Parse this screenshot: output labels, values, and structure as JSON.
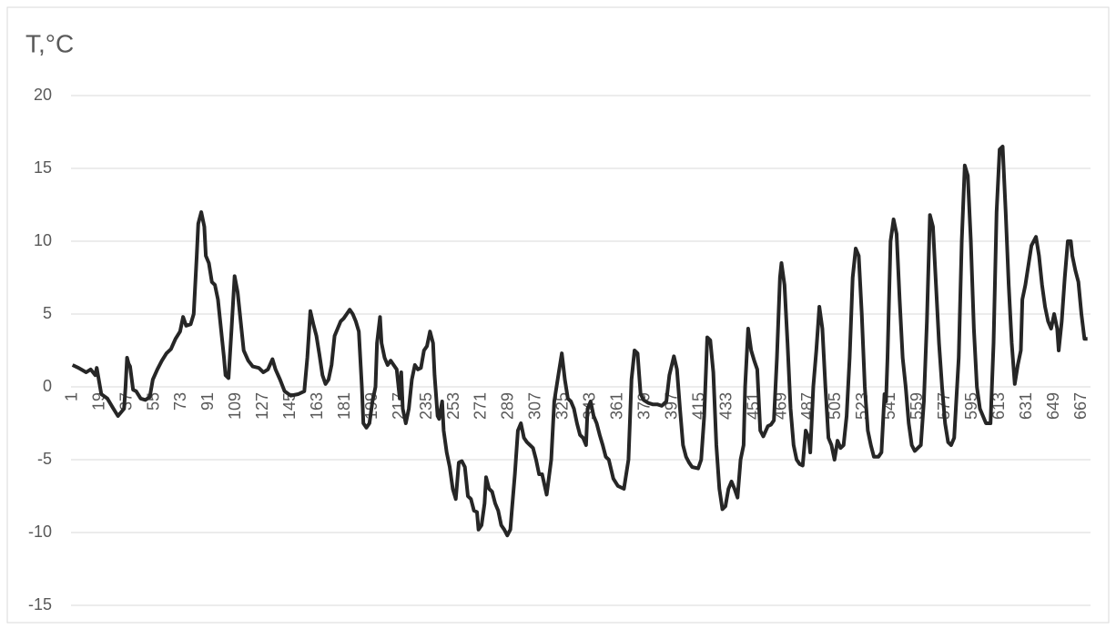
{
  "chart_data": {
    "type": "line",
    "title": "T,°C",
    "x": [
      1,
      5,
      10,
      13,
      16,
      17,
      20,
      24,
      28,
      31,
      35,
      36,
      37,
      38,
      39,
      41,
      43,
      46,
      49,
      52,
      54,
      57,
      60,
      63,
      66,
      69,
      72,
      74,
      76,
      79,
      81,
      83,
      84,
      86,
      88,
      89,
      91,
      93,
      95,
      97,
      99,
      101,
      102,
      104,
      106,
      108,
      110,
      112,
      114,
      117,
      120,
      124,
      127,
      130,
      133,
      135,
      138,
      141,
      145,
      150,
      154,
      156,
      158,
      160,
      162,
      164,
      166,
      168,
      170,
      172,
      174,
      176,
      178,
      180,
      182,
      184,
      186,
      188,
      190,
      192,
      193,
      195,
      197,
      199,
      201,
      202,
      204,
      205,
      207,
      209,
      211,
      213,
      215,
      217,
      218,
      219,
      221,
      223,
      225,
      227,
      229,
      231,
      233,
      235,
      237,
      239,
      240,
      242,
      243,
      245,
      246,
      248,
      250,
      252,
      254,
      256,
      258,
      260,
      262,
      264,
      266,
      268,
      269,
      271,
      273,
      274,
      276,
      278,
      280,
      282,
      284,
      286,
      288,
      290,
      291,
      293,
      295,
      297,
      299,
      301,
      303,
      305,
      307,
      309,
      311,
      314,
      317,
      319,
      322,
      324,
      326,
      328,
      330,
      332,
      334,
      336,
      338,
      340,
      341,
      343,
      345,
      347,
      349,
      351,
      353,
      355,
      358,
      361,
      365,
      368,
      370,
      372,
      374,
      376,
      378,
      381,
      384,
      387,
      390,
      393,
      395,
      398,
      400,
      402,
      404,
      406,
      408,
      410,
      414,
      416,
      418,
      420,
      422,
      424,
      426,
      428,
      430,
      432,
      434,
      436,
      438,
      440,
      442,
      444,
      445,
      447,
      449,
      451,
      453,
      455,
      457,
      460,
      462,
      464,
      466,
      468,
      469,
      471,
      473,
      475,
      477,
      479,
      481,
      483,
      485,
      487,
      488,
      490,
      492,
      494,
      496,
      498,
      500,
      502,
      504,
      506,
      508,
      510,
      512,
      514,
      516,
      518,
      520,
      522,
      524,
      526,
      528,
      530,
      533,
      535,
      537,
      538,
      539,
      541,
      543,
      545,
      547,
      549,
      551,
      553,
      555,
      557,
      559,
      561,
      563,
      565,
      567,
      569,
      571,
      573,
      575,
      577,
      579,
      581,
      583,
      586,
      588,
      590,
      592,
      594,
      596,
      598,
      600,
      602,
      604,
      607,
      609,
      611,
      613,
      615,
      617,
      619,
      621,
      623,
      625,
      627,
      628,
      630,
      634,
      637,
      639,
      641,
      643,
      645,
      647,
      649,
      651,
      652,
      654,
      656,
      658,
      660,
      661,
      663,
      665,
      667,
      669,
      671
    ],
    "series": [
      {
        "color": "#262626",
        "values": [
          1.5,
          1.3,
          1.0,
          1.2,
          0.8,
          1.3,
          -0.5,
          -0.8,
          -1.5,
          -2.0,
          -1.5,
          0,
          2.0,
          1.6,
          1.4,
          -0.2,
          -0.3,
          -0.8,
          -0.9,
          -0.7,
          0.5,
          1.2,
          1.8,
          2.3,
          2.6,
          3.3,
          3.8,
          4.8,
          4.2,
          4.3,
          5,
          9,
          11.2,
          12,
          11,
          9,
          8.5,
          7.2,
          7,
          6,
          4,
          2,
          0.8,
          0.6,
          4,
          7.6,
          6.5,
          4.5,
          2.5,
          1.8,
          1.4,
          1.3,
          1,
          1.2,
          1.9,
          1.2,
          0.5,
          -0.3,
          -0.6,
          -0.5,
          -0.3,
          2,
          5.2,
          4.3,
          3.5,
          2.2,
          0.8,
          0.2,
          0.5,
          1.5,
          3.5,
          4,
          4.5,
          4.7,
          5,
          5.3,
          5,
          4.5,
          3.8,
          0,
          -2.5,
          -2.8,
          -2.5,
          -1,
          0,
          3,
          4.8,
          3,
          2,
          1.5,
          1.8,
          1.5,
          1.2,
          -0.8,
          1,
          -1.5,
          -2.5,
          -1.5,
          0.5,
          1.5,
          1.2,
          1.3,
          2.5,
          2.8,
          3.8,
          3,
          0.8,
          -2,
          -2.2,
          -1,
          -3,
          -4.5,
          -5.5,
          -7,
          -7.7,
          -5.2,
          -5.1,
          -5.5,
          -7.5,
          -7.7,
          -8.5,
          -8.6,
          -9.8,
          -9.5,
          -8,
          -6.2,
          -7,
          -7.2,
          -8,
          -8.5,
          -9.5,
          -9.8,
          -10.2,
          -9.8,
          -8.5,
          -6,
          -3,
          -2.5,
          -3.5,
          -3.8,
          -4,
          -4.2,
          -5,
          -6,
          -6,
          -7.4,
          -5,
          -1,
          1,
          2.3,
          0.5,
          -0.8,
          -1,
          -1.5,
          -2.5,
          -3.3,
          -3.5,
          -4,
          -1.5,
          -1,
          -2,
          -2.5,
          -3.3,
          -4,
          -4.8,
          -5,
          -6.3,
          -6.8,
          -7,
          -5,
          0.5,
          2.5,
          2.3,
          -0.5,
          -0.9,
          -1.1,
          -1.2,
          -1.2,
          -1.3,
          -1,
          0.8,
          2.1,
          1.2,
          -1.5,
          -4,
          -4.8,
          -5.2,
          -5.5,
          -5.6,
          -5,
          -2,
          3.4,
          3.2,
          1,
          -4,
          -7,
          -8.4,
          -8.2,
          -7,
          -6.5,
          -7,
          -7.6,
          -5,
          -4,
          0,
          4,
          2.5,
          1.8,
          1.2,
          -3,
          -3.4,
          -2.7,
          -2.6,
          -2.3,
          2,
          7.5,
          8.5,
          7,
          3,
          -1.5,
          -4,
          -5,
          -5.3,
          -5.4,
          -3,
          -3.5,
          -4.5,
          0,
          2.5,
          5.5,
          4,
          0,
          -3.5,
          -4,
          -5,
          -3.7,
          -4.2,
          -4,
          -2,
          2,
          7.5,
          9.5,
          9,
          5,
          0,
          -3,
          -4,
          -4.8,
          -4.8,
          -4.5,
          -0.5,
          -1,
          2,
          10,
          11.5,
          10.5,
          6,
          2,
          0,
          -2.5,
          -4,
          -4.4,
          -4.2,
          -4,
          -1,
          4.5,
          11.8,
          11,
          7,
          3,
          0,
          -2.5,
          -3.8,
          -4,
          -3.5,
          2,
          10,
          15.2,
          14.5,
          10,
          4,
          0,
          -1.5,
          -2,
          -2.5,
          -2.5,
          3,
          12,
          16.3,
          16.5,
          12,
          7,
          3,
          0.2,
          1.5,
          2.5,
          6,
          7,
          9.7,
          10.3,
          9,
          7,
          5.5,
          4.5,
          4,
          5,
          4,
          2.5,
          4.5,
          7.5,
          10,
          10,
          9,
          8,
          7.2,
          5,
          3.3,
          3.3
        ]
      }
    ],
    "xlim": [
      0,
      673
    ],
    "xticks": [
      1,
      19,
      37,
      55,
      73,
      91,
      109,
      127,
      145,
      163,
      181,
      199,
      217,
      235,
      253,
      271,
      289,
      307,
      325,
      343,
      361,
      379,
      397,
      415,
      433,
      451,
      469,
      487,
      505,
      523,
      541,
      559,
      577,
      595,
      613,
      631,
      649,
      667
    ],
    "ylim": [
      -15,
      20
    ],
    "yticks": [
      -15,
      -10,
      -5,
      0,
      5,
      10,
      15,
      20
    ],
    "grid": true,
    "grid_color": "#d9d9d9"
  }
}
